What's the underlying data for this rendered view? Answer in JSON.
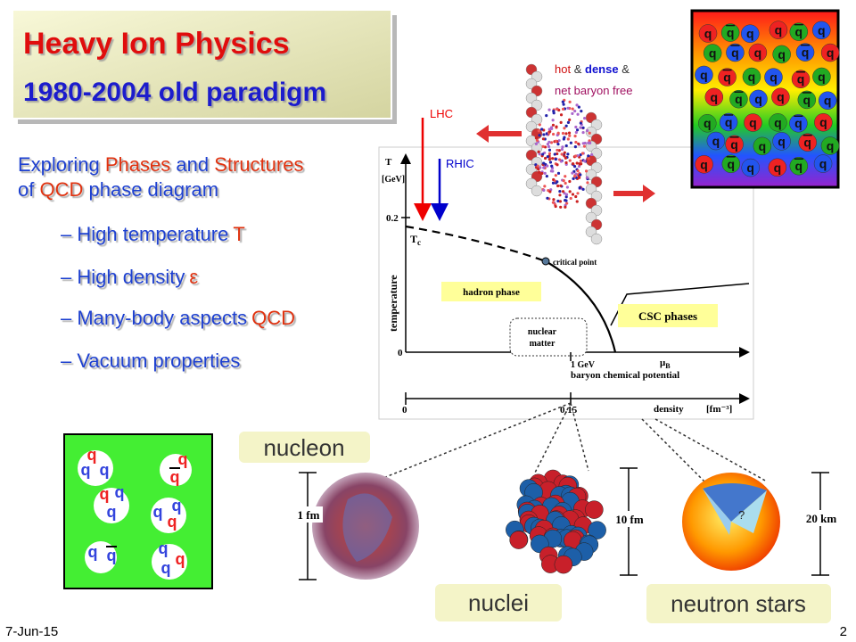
{
  "header": {
    "title": "Heavy Ion Physics",
    "subtitle": "1980-2004 old paradigm"
  },
  "intro": {
    "line1": [
      "Exploring",
      "Phases",
      "and",
      "Structures"
    ],
    "line2": [
      "of",
      "QCD",
      "phase diagram"
    ]
  },
  "bullets": [
    [
      "– High temperature",
      "T"
    ],
    [
      "– High density",
      "ε"
    ],
    [
      "– Many-body aspects",
      "QCD"
    ],
    [
      "– Vacuum properties"
    ]
  ],
  "beams": {
    "lhc": "LHC",
    "rhic": "RHIC"
  },
  "collision_note": {
    "hot": "hot",
    "amp1": "&",
    "dense": "dense",
    "amp2": "&",
    "rest": "net baryon free"
  },
  "phase_diagram": {
    "y_axis_label": "T",
    "y_axis_unit": "[GeV]",
    "y_tick": "0.2",
    "tc_label": "T",
    "tc_sub": "c",
    "temperature": "temperature",
    "critical_point": "critical point",
    "hadron_phase": "hadron phase",
    "csc_phases": "CSC phases",
    "nuclear_matter": [
      "nuclear",
      "matter"
    ],
    "origin": "0",
    "mu_tick": "1 GeV",
    "mu_label": "μ",
    "mu_sub": "B",
    "x_axis_label": "baryon chemical potential",
    "density_origin": "0",
    "density_tick": "0.15",
    "density_label": "density",
    "density_unit": "[fm⁻³]"
  },
  "scales": {
    "nucleon": "nucleon",
    "nucleon_size": "1 fm",
    "nuclei": "nuclei",
    "nuclei_size": "10 fm",
    "neutron_stars": "neutron stars",
    "star_size": "20 km",
    "star_core": "?"
  },
  "quark_box": [
    "q",
    "q",
    "q",
    "q",
    "q",
    "q",
    "q",
    "q",
    "q",
    "q",
    "q",
    "q",
    "q",
    "q",
    "q",
    "q",
    "q",
    "q",
    "q",
    "q",
    "q",
    "q",
    "q",
    "q",
    "q",
    "q",
    "q",
    "q",
    "q",
    "q",
    "q",
    "q",
    "q",
    "q",
    "q",
    "q",
    "q",
    "q",
    "q",
    "q",
    "q",
    "q"
  ],
  "hadron_box": [
    "q",
    "q",
    "q",
    "q",
    "q",
    "q",
    "q",
    "q",
    "q",
    "q",
    "q",
    "q",
    "q",
    "q",
    "q",
    "q"
  ],
  "footer": {
    "date": "7-Jun-15",
    "page": "2"
  }
}
